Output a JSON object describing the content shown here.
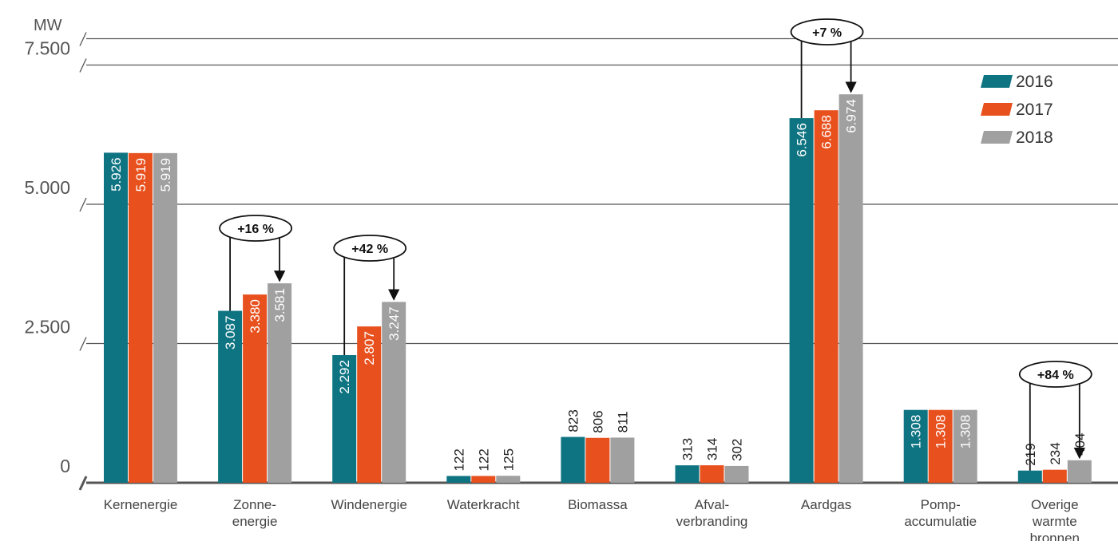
{
  "chart_data": {
    "type": "bar",
    "unit": "MW",
    "categories": [
      [
        "Kernenergie"
      ],
      [
        "Zonne-",
        "energie"
      ],
      [
        "Windenergie"
      ],
      [
        "Waterkracht"
      ],
      [
        "Biomassa"
      ],
      [
        "Afval-",
        "verbranding"
      ],
      [
        "Aardgas"
      ],
      [
        "Pomp-",
        "accumulatie"
      ],
      [
        "Overige",
        "warmte",
        "bronnen"
      ]
    ],
    "series": [
      {
        "name": "2016",
        "color": "#0F7482",
        "values": [
          5926,
          3087,
          2292,
          122,
          823,
          313,
          6546,
          1308,
          219
        ],
        "labels": [
          "5.926",
          "3.087",
          "2.292",
          "122",
          "823",
          "313",
          "6.546",
          "1.308",
          "219"
        ]
      },
      {
        "name": "2017",
        "color": "#E8511E",
        "values": [
          5919,
          3380,
          2807,
          122,
          806,
          314,
          6688,
          1308,
          234
        ],
        "labels": [
          "5.919",
          "3.380",
          "2.807",
          "122",
          "806",
          "314",
          "6.688",
          "1.308",
          "234"
        ]
      },
      {
        "name": "2018",
        "color": "#A0A0A0",
        "values": [
          5919,
          3581,
          3247,
          125,
          811,
          302,
          6974,
          1308,
          404
        ],
        "labels": [
          "5.919",
          "3.581",
          "3.247",
          "125",
          "811",
          "302",
          "6.974",
          "1.308",
          "404"
        ]
      }
    ],
    "yticks": [
      {
        "value": 0,
        "label": "0"
      },
      {
        "value": 2500,
        "label": "2.500"
      },
      {
        "value": 5000,
        "label": "5.000"
      },
      {
        "value": 7500,
        "label": "7.500"
      }
    ],
    "ylim": [
      0,
      8000
    ],
    "grid": true,
    "legend_position": "top-right",
    "annotations": [
      {
        "category": 1,
        "text": "+16 %"
      },
      {
        "category": 2,
        "text": "+42 %"
      },
      {
        "category": 6,
        "text": "+7 %"
      },
      {
        "category": 8,
        "text": "+84 %"
      }
    ]
  }
}
